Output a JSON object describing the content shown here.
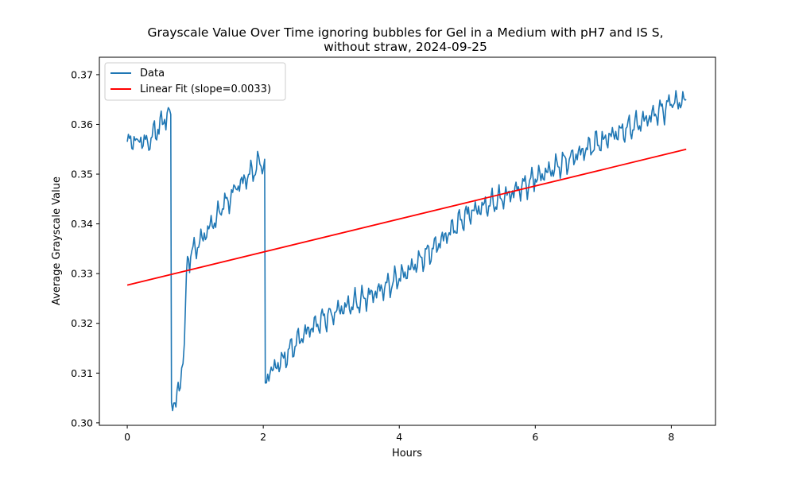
{
  "chart_data": {
    "type": "line",
    "title": "Grayscale Value Over Time ignoring bubbles for Gel in a Medium with pH7 and IS S,",
    "subtitle": "without straw, 2024-09-25",
    "xlabel": "Hours",
    "ylabel": "Average Grayscale Value",
    "xlim": [
      -0.41,
      8.65
    ],
    "ylim": [
      0.2995,
      0.3735
    ],
    "x_ticks": [
      {
        "value": 0,
        "label": "0"
      },
      {
        "value": 2,
        "label": "2"
      },
      {
        "value": 4,
        "label": "4"
      },
      {
        "value": 6,
        "label": "6"
      },
      {
        "value": 8,
        "label": "8"
      }
    ],
    "y_ticks": [
      {
        "value": 0.3,
        "label": "0.30"
      },
      {
        "value": 0.31,
        "label": "0.31"
      },
      {
        "value": 0.32,
        "label": "0.32"
      },
      {
        "value": 0.33,
        "label": "0.33"
      },
      {
        "value": 0.34,
        "label": "0.34"
      },
      {
        "value": 0.35,
        "label": "0.35"
      },
      {
        "value": 0.36,
        "label": "0.36"
      },
      {
        "value": 0.37,
        "label": "0.37"
      }
    ],
    "grid": false,
    "legend_position": "top-left",
    "series": [
      {
        "name": "Data",
        "color": "#1f77b4",
        "x": [
          0.0,
          0.15,
          0.3,
          0.45,
          0.55,
          0.64,
          0.65,
          0.7,
          0.78,
          0.8,
          0.84,
          0.87,
          0.9,
          1.0,
          1.2,
          1.4,
          1.6,
          1.8,
          1.95,
          2.02,
          2.03,
          2.1,
          2.3,
          2.6,
          3.0,
          3.5,
          4.0,
          4.5,
          5.0,
          5.5,
          6.0,
          6.5,
          7.0,
          7.5,
          8.0,
          8.22
        ],
        "y": [
          0.3565,
          0.357,
          0.3565,
          0.359,
          0.361,
          0.362,
          0.304,
          0.304,
          0.307,
          0.311,
          0.316,
          0.33,
          0.333,
          0.335,
          0.339,
          0.343,
          0.347,
          0.35,
          0.352,
          0.353,
          0.308,
          0.31,
          0.313,
          0.318,
          0.322,
          0.325,
          0.329,
          0.335,
          0.342,
          0.345,
          0.349,
          0.353,
          0.357,
          0.36,
          0.364,
          0.365
        ]
      },
      {
        "name": "Linear Fit (slope=0.0033)",
        "color": "#ff0000",
        "x": [
          0.0,
          8.22
        ],
        "y": [
          0.3277,
          0.355
        ]
      }
    ]
  }
}
